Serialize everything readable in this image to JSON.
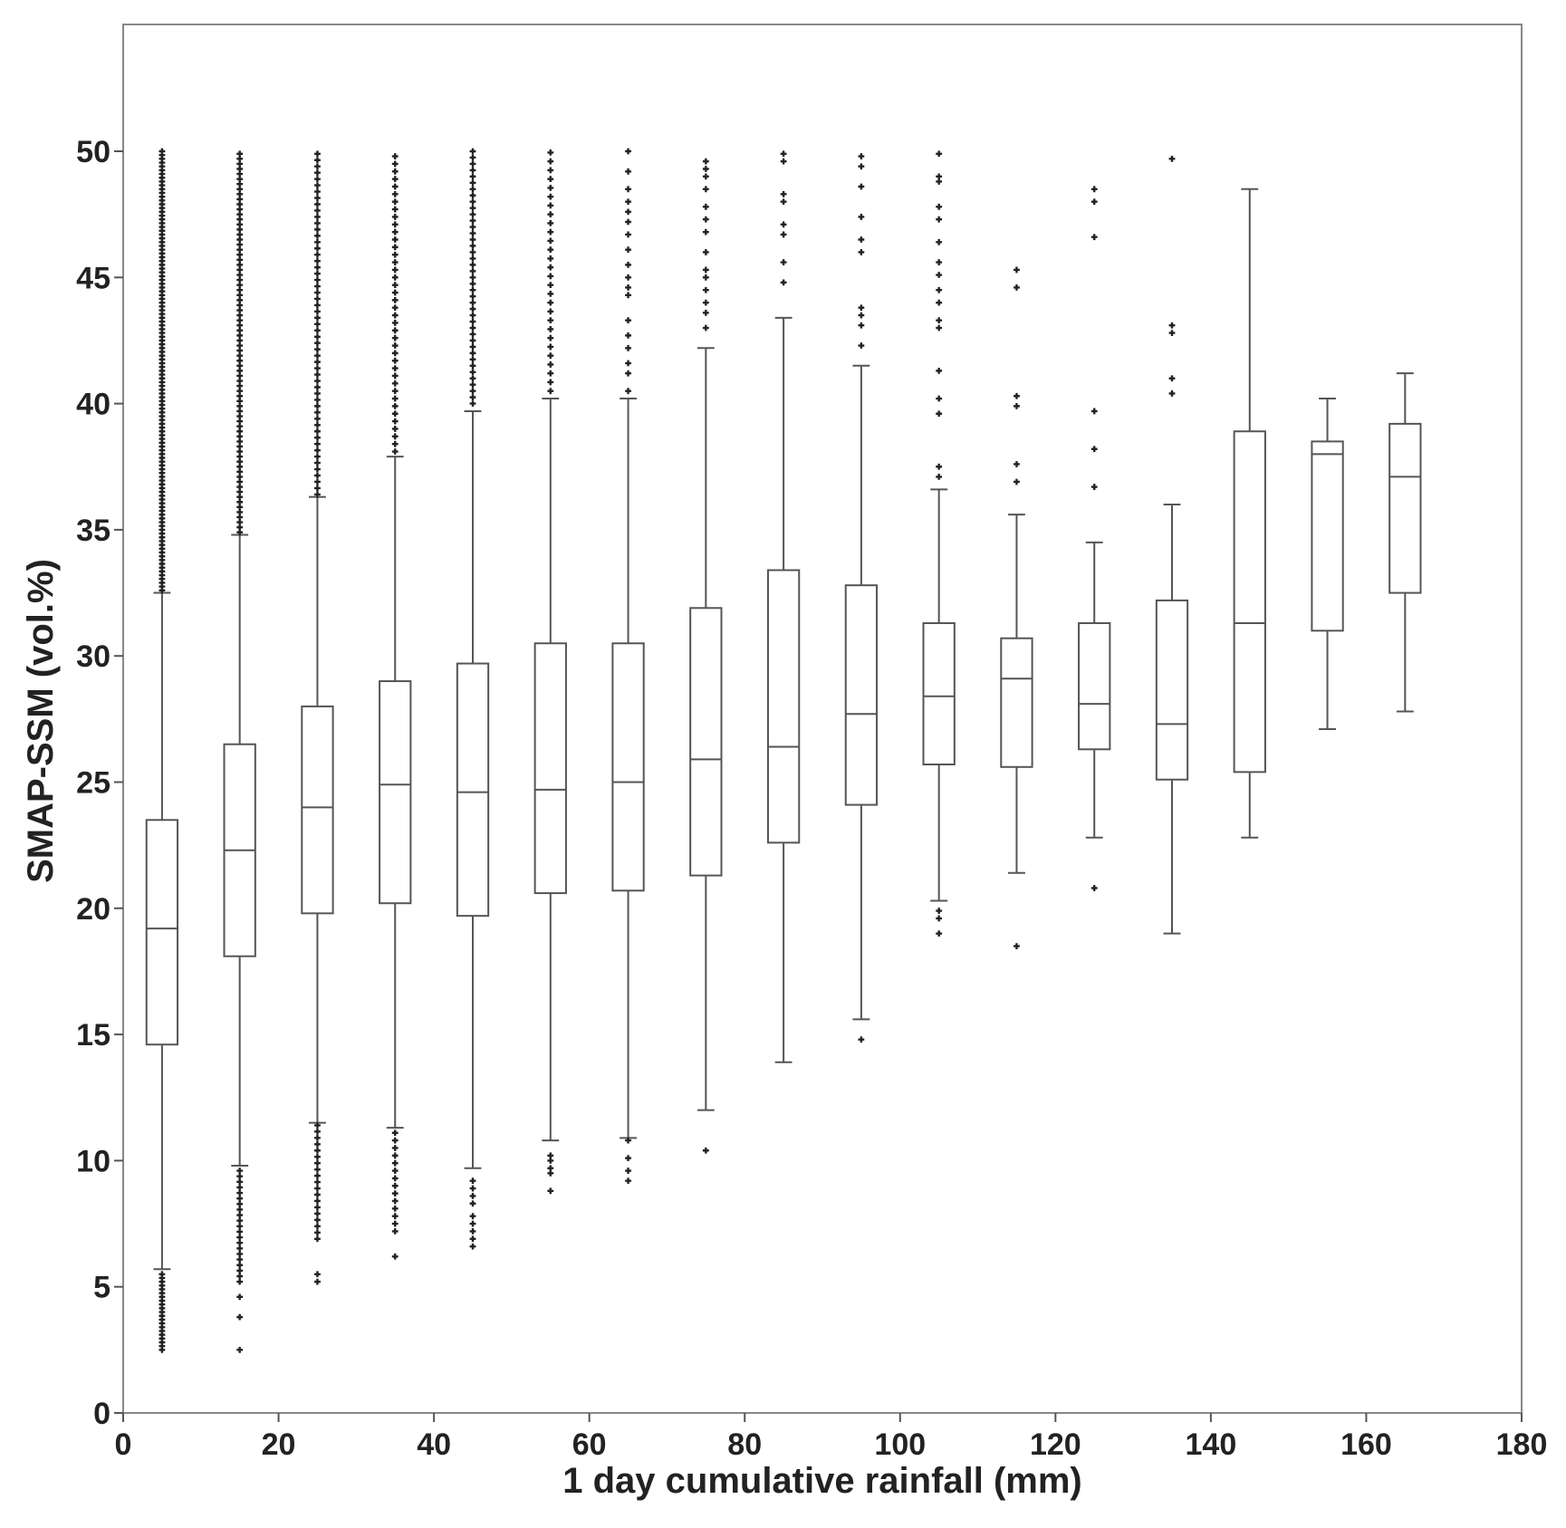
{
  "chart_data": {
    "type": "box",
    "title": "",
    "xlabel": "1 day cumulative rainfall (mm)",
    "ylabel": "SMAP-SSM (vol.%)",
    "xlim": [
      0,
      180
    ],
    "ylim": [
      0,
      55
    ],
    "xticks": [
      0,
      20,
      40,
      60,
      80,
      100,
      120,
      140,
      160,
      180
    ],
    "yticks": [
      0,
      5,
      10,
      15,
      20,
      25,
      30,
      35,
      40,
      45,
      50
    ],
    "box_width": 4,
    "grid": false,
    "legend": "none",
    "colors": {
      "box": "#555555",
      "outlier": "#222222",
      "frame": "#888888"
    },
    "boxes": [
      {
        "x": 5,
        "whislo": 5.7,
        "q1": 14.6,
        "med": 19.2,
        "q3": 23.5,
        "whishi": 32.5,
        "fliers_high": [
          {
            "from": 32.6,
            "to": 50.0,
            "step": 0.15
          }
        ],
        "fliers_low": [
          {
            "from": 2.5,
            "to": 5.6,
            "step": 0.15
          }
        ]
      },
      {
        "x": 15,
        "whislo": 9.8,
        "q1": 18.1,
        "med": 22.3,
        "q3": 26.5,
        "whishi": 34.8,
        "fliers_high": [
          {
            "from": 34.9,
            "to": 50.0,
            "step": 0.2
          }
        ],
        "fliers_low": [
          {
            "from": 5.2,
            "to": 9.7,
            "step": 0.22
          }
        ],
        "fliers_low_extra": [
          4.6,
          3.8,
          2.5
        ]
      },
      {
        "x": 25,
        "whislo": 11.5,
        "q1": 19.8,
        "med": 24.0,
        "q3": 28.0,
        "whishi": 36.3,
        "fliers_high": [
          {
            "from": 36.4,
            "to": 50.0,
            "step": 0.25
          }
        ],
        "fliers_low": [
          {
            "from": 6.9,
            "to": 11.4,
            "step": 0.25
          }
        ],
        "fliers_low_extra": [
          5.5,
          5.2
        ]
      },
      {
        "x": 35,
        "whislo": 11.3,
        "q1": 20.2,
        "med": 24.9,
        "q3": 29.0,
        "whishi": 37.9,
        "fliers_high": [
          {
            "from": 38.1,
            "to": 50.0,
            "step": 0.3
          }
        ],
        "fliers_low": [
          {
            "from": 7.2,
            "to": 11.2,
            "step": 0.3
          }
        ],
        "fliers_low_extra": [
          6.2
        ]
      },
      {
        "x": 45,
        "whislo": 9.7,
        "q1": 19.7,
        "med": 24.6,
        "q3": 29.7,
        "whishi": 39.7,
        "fliers_high": [
          {
            "from": 40.0,
            "to": 50.0,
            "step": 0.25
          }
        ],
        "fliers_low_extra": [
          9.2,
          8.9,
          8.6,
          8.3,
          7.8,
          7.5,
          7.2,
          6.9,
          6.6
        ]
      },
      {
        "x": 55,
        "whislo": 10.8,
        "q1": 20.6,
        "med": 24.7,
        "q3": 30.5,
        "whishi": 40.2,
        "fliers_high": [
          {
            "from": 40.5,
            "to": 50.0,
            "step": 0.35
          }
        ],
        "fliers_low_extra": [
          10.2,
          10.0,
          9.7,
          9.5,
          8.8
        ]
      },
      {
        "x": 65,
        "whislo": 10.9,
        "q1": 20.7,
        "med": 25.0,
        "q3": 30.5,
        "whishi": 40.2,
        "fliers_high_extra": [
          40.5,
          41.2,
          41.6,
          42.2,
          42.7,
          43.3,
          44.3,
          44.6,
          45.0,
          45.5,
          46.1,
          46.7,
          47.2,
          47.6,
          48.0,
          48.5,
          49.2,
          50.0
        ],
        "fliers_low_extra": [
          10.8,
          10.1,
          9.6,
          9.2
        ]
      },
      {
        "x": 75,
        "whislo": 12.0,
        "q1": 21.3,
        "med": 25.9,
        "q3": 31.9,
        "whishi": 42.2,
        "fliers_high_extra": [
          43.0,
          43.6,
          44.0,
          44.5,
          45.0,
          45.3,
          46.0,
          46.8,
          47.3,
          47.8,
          48.5,
          49.0,
          49.3,
          49.6
        ],
        "fliers_low_extra": [
          10.4
        ]
      },
      {
        "x": 85,
        "whislo": 13.9,
        "q1": 22.6,
        "med": 26.4,
        "q3": 33.4,
        "whishi": 43.4,
        "fliers_high_extra": [
          44.8,
          45.6,
          46.7,
          47.1,
          48.0,
          48.3,
          49.6,
          49.9
        ]
      },
      {
        "x": 95,
        "whislo": 15.6,
        "q1": 24.1,
        "med": 27.7,
        "q3": 32.8,
        "whishi": 41.5,
        "fliers_high_extra": [
          42.3,
          43.1,
          43.5,
          43.8,
          46.0,
          46.5,
          47.4,
          48.6,
          49.4,
          49.8
        ],
        "fliers_low_extra": [
          14.8
        ]
      },
      {
        "x": 105,
        "whislo": 20.3,
        "q1": 25.7,
        "med": 28.4,
        "q3": 31.3,
        "whishi": 36.6,
        "fliers_high_extra": [
          37.1,
          37.5,
          39.6,
          40.2,
          41.3,
          43.0,
          43.3,
          44.0,
          44.5,
          45.1,
          45.6,
          46.4,
          47.3,
          47.8,
          48.8,
          49.0,
          49.9
        ],
        "fliers_low_extra": [
          19.9,
          19.6,
          19.0
        ]
      },
      {
        "x": 115,
        "whislo": 21.4,
        "q1": 25.6,
        "med": 29.1,
        "q3": 30.7,
        "whishi": 35.6,
        "fliers_high_extra": [
          36.9,
          37.6,
          39.9,
          40.3,
          44.6,
          45.3
        ],
        "fliers_low_extra": [
          18.5
        ]
      },
      {
        "x": 125,
        "whislo": 22.8,
        "q1": 26.3,
        "med": 28.1,
        "q3": 31.3,
        "whishi": 34.5,
        "fliers_high_extra": [
          36.7,
          38.2,
          39.7,
          46.6,
          48.0,
          48.5
        ],
        "fliers_low_extra": [
          20.8
        ]
      },
      {
        "x": 135,
        "whislo": 19.0,
        "q1": 25.1,
        "med": 27.3,
        "q3": 32.2,
        "whishi": 36.0,
        "fliers_high_extra": [
          40.4,
          41.0,
          42.8,
          43.1,
          49.7
        ]
      },
      {
        "x": 145,
        "whislo": 22.8,
        "q1": 25.4,
        "med": 31.3,
        "q3": 38.9,
        "whishi": 48.5
      },
      {
        "x": 155,
        "whislo": 27.1,
        "q1": 31.0,
        "med": 38.0,
        "q3": 38.5,
        "whishi": 40.2
      },
      {
        "x": 165,
        "whislo": 27.8,
        "q1": 32.5,
        "med": 37.1,
        "q3": 39.2,
        "whishi": 41.2
      }
    ]
  }
}
